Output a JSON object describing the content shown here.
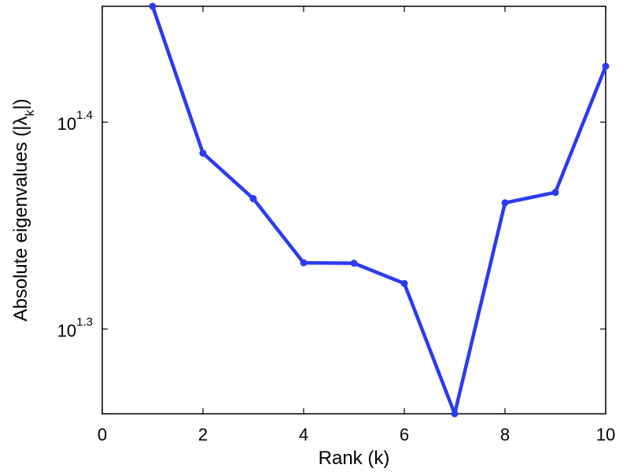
{
  "chart_data": {
    "type": "line",
    "xlabel": "Rank (k)",
    "ylabel": "Absolute eigenvalues (|λk|)",
    "ylabel_parts": {
      "main": "Absolute eigenvalues (|λ",
      "sub": "k",
      "end": "|)"
    },
    "yscale": "log10",
    "xlim": [
      0,
      10
    ],
    "ylim_log10": [
      1.259,
      1.456
    ],
    "xticks": [
      0,
      2,
      4,
      6,
      8,
      10
    ],
    "yticks": [
      {
        "base": "10",
        "exp": "1.3",
        "log10": 1.3
      },
      {
        "base": "10",
        "exp": "1.4",
        "log10": 1.4
      }
    ],
    "grid": false,
    "series": [
      {
        "color": "#2a3cf0",
        "x": [
          1,
          2,
          3,
          4,
          5,
          6,
          7,
          8,
          9,
          10
        ],
        "log10_y": [
          1.456,
          1.385,
          1.363,
          1.332,
          1.3318,
          1.322,
          1.259,
          1.361,
          1.366,
          1.427
        ]
      }
    ]
  }
}
